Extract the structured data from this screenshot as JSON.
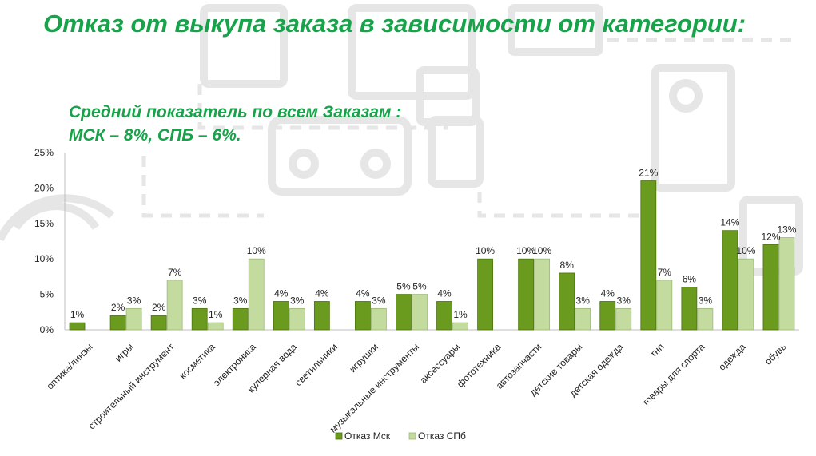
{
  "title": "Отказ от выкупа заказа в зависимости от категории:",
  "subtitle": {
    "line1": "Средний показатель по всем Заказам :",
    "line2": "МСК – 8%, СПБ – 6%."
  },
  "colors": {
    "title": "#17a34a",
    "series_msk": "#6a9b1f",
    "series_spb": "#c4dba0"
  },
  "chart_data": {
    "type": "bar",
    "categories": [
      "оптика/линзы",
      "игры",
      "строительный инструмент",
      "косметика",
      "электроника",
      "кулерная вода",
      "светильники",
      "игрушки",
      "музыкальные инструменты",
      "аксессуары",
      "фототехника",
      "автозапчасти",
      "детские товары",
      "детская одежда",
      "тнп",
      "товары для спорта",
      "одежда",
      "обувь"
    ],
    "series": [
      {
        "name": "Отказ Мск",
        "values": [
          1,
          2,
          2,
          3,
          3,
          4,
          4,
          4,
          5,
          4,
          10,
          10,
          8,
          4,
          21,
          6,
          14,
          12
        ]
      },
      {
        "name": "Отказ СПб",
        "values": [
          null,
          3,
          7,
          1,
          10,
          3,
          null,
          3,
          5,
          1,
          null,
          10,
          3,
          3,
          7,
          3,
          10,
          13
        ]
      }
    ],
    "y_ticks": [
      "0%",
      "5%",
      "10%",
      "15%",
      "20%",
      "25%"
    ],
    "ylim": [
      0,
      25
    ],
    "unit": "%",
    "grid": false,
    "legend": "bottom"
  }
}
